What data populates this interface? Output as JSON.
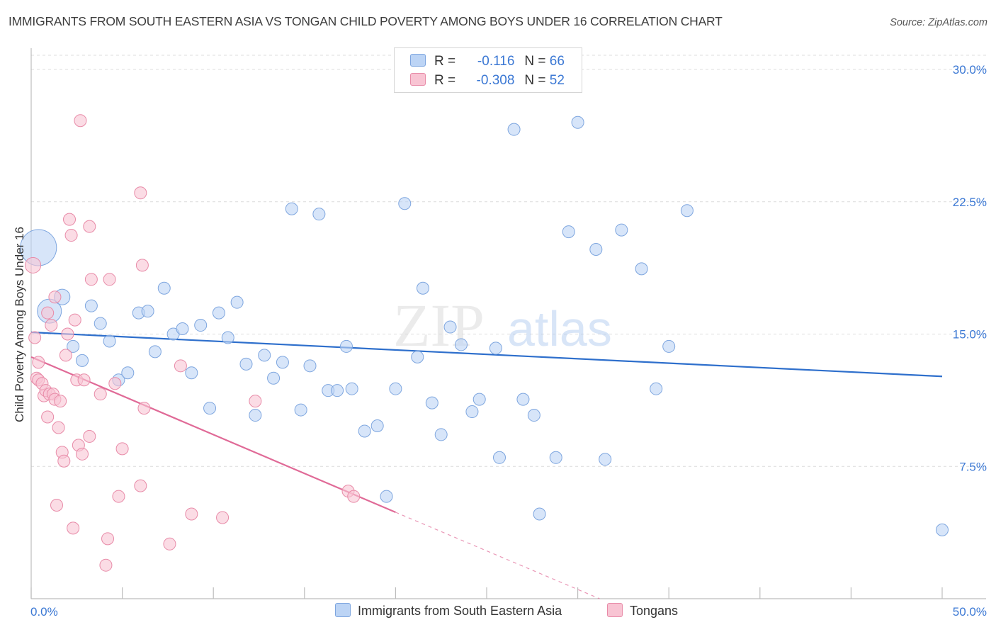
{
  "header": {
    "title": "IMMIGRANTS FROM SOUTH EASTERN ASIA VS TONGAN CHILD POVERTY AMONG BOYS UNDER 16 CORRELATION CHART",
    "source": "Source: ZipAtlas.com"
  },
  "stats": {
    "row1": {
      "r_label": "R =",
      "r_value": "-0.116",
      "n_label": "N =",
      "n_value": "66"
    },
    "row2": {
      "r_label": "R =",
      "r_value": "-0.308",
      "n_label": "N =",
      "n_value": "52"
    }
  },
  "legend": {
    "series1": "Immigrants from South Eastern Asia",
    "series2": "Tongans"
  },
  "watermark": {
    "zip": "ZIP",
    "atlas": "atlas"
  },
  "colors": {
    "blue_fill": "#bcd4f5",
    "blue_stroke": "#7ea6df",
    "blue_line": "#2e6fcc",
    "pink_fill": "#f8c4d3",
    "pink_stroke": "#e88ba8",
    "pink_line": "#e06a97",
    "grid": "#dcdcdc",
    "tick_label": "#3b78d4"
  },
  "chart_data": {
    "type": "scatter",
    "title": "IMMIGRANTS FROM SOUTH EASTERN ASIA VS TONGAN CHILD POVERTY AMONG BOYS UNDER 16 CORRELATION CHART",
    "xlabel": "",
    "ylabel": "Child Poverty Among Boys Under 16",
    "xlim": [
      0,
      50
    ],
    "ylim": [
      0,
      30
    ],
    "x_tick_labels": [
      "0.0%",
      "50.0%"
    ],
    "y_ticks": [
      7.5,
      15.0,
      22.5,
      30.0
    ],
    "y_tick_labels": [
      "7.5%",
      "15.0%",
      "22.5%",
      "30.0%"
    ],
    "grid": true,
    "legend_position": "bottom-center",
    "series": [
      {
        "name": "Immigrants from South Eastern Asia",
        "r": -0.116,
        "n": 66,
        "trend": {
          "x": [
            0,
            50
          ],
          "y": [
            15.1,
            12.6
          ]
        },
        "points": [
          [
            0.4,
            19.9,
            3
          ],
          [
            1.0,
            16.3,
            2
          ],
          [
            1.7,
            17.1,
            1.3
          ],
          [
            2.3,
            14.3,
            1
          ],
          [
            2.8,
            13.5,
            1
          ],
          [
            3.3,
            16.6,
            1
          ],
          [
            3.8,
            15.6,
            1
          ],
          [
            4.3,
            14.6,
            1
          ],
          [
            4.8,
            12.4,
            1
          ],
          [
            5.3,
            12.8,
            1
          ],
          [
            5.9,
            16.2,
            1
          ],
          [
            6.4,
            16.3,
            1
          ],
          [
            6.8,
            14.0,
            1
          ],
          [
            7.3,
            17.6,
            1
          ],
          [
            7.8,
            15.0,
            1
          ],
          [
            8.3,
            15.3,
            1
          ],
          [
            8.8,
            12.8,
            1
          ],
          [
            9.3,
            15.5,
            1
          ],
          [
            9.8,
            10.8,
            1
          ],
          [
            10.3,
            16.2,
            1
          ],
          [
            10.8,
            14.8,
            1
          ],
          [
            11.3,
            16.8,
            1
          ],
          [
            11.8,
            13.3,
            1
          ],
          [
            12.3,
            10.4,
            1
          ],
          [
            12.8,
            13.8,
            1
          ],
          [
            13.3,
            12.5,
            1
          ],
          [
            13.8,
            13.4,
            1
          ],
          [
            14.3,
            22.1,
            1
          ],
          [
            14.8,
            10.7,
            1
          ],
          [
            15.3,
            13.2,
            1
          ],
          [
            15.8,
            21.8,
            1
          ],
          [
            16.3,
            11.8,
            1
          ],
          [
            16.8,
            11.8,
            1
          ],
          [
            17.3,
            14.3,
            1
          ],
          [
            17.6,
            11.9,
            1
          ],
          [
            18.3,
            9.5,
            1
          ],
          [
            19.0,
            9.8,
            1
          ],
          [
            19.5,
            5.8,
            1
          ],
          [
            20.0,
            11.9,
            1
          ],
          [
            20.5,
            22.4,
            1
          ],
          [
            21.2,
            13.7,
            1
          ],
          [
            21.5,
            17.6,
            1
          ],
          [
            22.0,
            11.1,
            1
          ],
          [
            22.5,
            9.3,
            1
          ],
          [
            23.0,
            15.4,
            1
          ],
          [
            23.6,
            14.4,
            1
          ],
          [
            24.2,
            10.6,
            1
          ],
          [
            24.6,
            11.3,
            1
          ],
          [
            25.5,
            14.2,
            1
          ],
          [
            25.7,
            8.0,
            1
          ],
          [
            26.5,
            26.6,
            1
          ],
          [
            27.0,
            11.3,
            1
          ],
          [
            27.6,
            10.4,
            1
          ],
          [
            27.9,
            4.8,
            1
          ],
          [
            28.8,
            8.0,
            1
          ],
          [
            29.5,
            20.8,
            1
          ],
          [
            30.0,
            27.0,
            1
          ],
          [
            31.0,
            19.8,
            1
          ],
          [
            31.5,
            7.9,
            1
          ],
          [
            32.4,
            20.9,
            1
          ],
          [
            33.5,
            18.7,
            1
          ],
          [
            34.3,
            11.9,
            1
          ],
          [
            35.0,
            14.3,
            1
          ],
          [
            36.0,
            22.0,
            1
          ],
          [
            50.0,
            3.9,
            1
          ]
        ]
      },
      {
        "name": "Tongans",
        "r": -0.308,
        "n": 52,
        "trend": {
          "x": [
            0,
            20
          ],
          "y": [
            13.7,
            4.9
          ]
        },
        "trend_dashed": {
          "x": [
            20,
            31.2
          ],
          "y": [
            4.9,
            0
          ]
        },
        "points": [
          [
            0.1,
            18.9,
            1.3
          ],
          [
            0.2,
            14.8,
            1
          ],
          [
            0.3,
            12.5,
            1
          ],
          [
            0.4,
            13.4,
            1
          ],
          [
            0.4,
            12.4,
            1
          ],
          [
            0.6,
            12.2,
            1
          ],
          [
            0.7,
            11.5,
            1
          ],
          [
            0.8,
            11.8,
            1
          ],
          [
            0.9,
            10.3,
            1
          ],
          [
            0.9,
            16.2,
            1
          ],
          [
            1.0,
            11.6,
            1
          ],
          [
            1.1,
            15.5,
            1
          ],
          [
            1.2,
            11.6,
            1
          ],
          [
            1.3,
            11.3,
            1
          ],
          [
            1.3,
            17.1,
            1
          ],
          [
            1.4,
            5.3,
            1
          ],
          [
            1.5,
            9.7,
            1
          ],
          [
            1.6,
            11.2,
            1
          ],
          [
            1.7,
            8.3,
            1
          ],
          [
            1.8,
            7.8,
            1
          ],
          [
            1.9,
            13.8,
            1
          ],
          [
            2.0,
            15.0,
            1
          ],
          [
            2.1,
            21.5,
            1
          ],
          [
            2.2,
            20.6,
            1
          ],
          [
            2.3,
            4.0,
            1
          ],
          [
            2.4,
            15.8,
            1
          ],
          [
            2.5,
            12.4,
            1
          ],
          [
            2.6,
            8.7,
            1
          ],
          [
            2.7,
            27.1,
            1
          ],
          [
            2.8,
            8.2,
            1
          ],
          [
            2.9,
            12.4,
            1
          ],
          [
            3.2,
            9.2,
            1
          ],
          [
            3.2,
            21.1,
            1
          ],
          [
            3.3,
            18.1,
            1
          ],
          [
            3.8,
            11.6,
            1
          ],
          [
            4.1,
            1.9,
            1
          ],
          [
            4.2,
            3.4,
            1
          ],
          [
            4.3,
            18.1,
            1
          ],
          [
            4.6,
            12.2,
            1
          ],
          [
            4.8,
            5.8,
            1
          ],
          [
            5.0,
            8.5,
            1
          ],
          [
            6.0,
            6.4,
            1
          ],
          [
            6.0,
            23.0,
            1
          ],
          [
            6.1,
            18.9,
            1
          ],
          [
            6.2,
            10.8,
            1
          ],
          [
            7.6,
            3.1,
            1
          ],
          [
            8.2,
            13.2,
            1
          ],
          [
            8.8,
            4.8,
            1
          ],
          [
            10.5,
            4.6,
            1
          ],
          [
            12.3,
            11.2,
            1
          ],
          [
            17.4,
            6.1,
            1
          ],
          [
            17.7,
            5.8,
            1
          ]
        ]
      }
    ]
  }
}
